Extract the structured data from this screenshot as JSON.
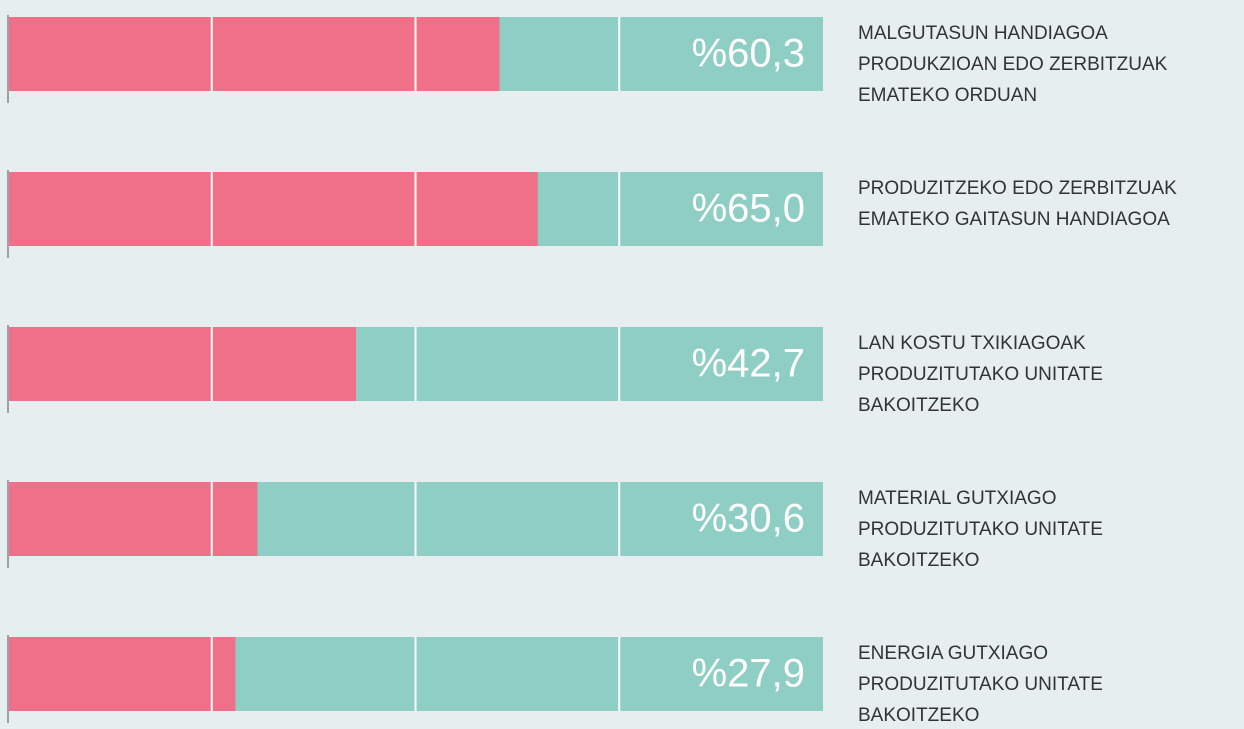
{
  "chart_data": {
    "type": "bar",
    "orientation": "horizontal",
    "categories": [
      [
        "MALGUTASUN HANDIAGOA",
        "PRODUKZIOAN EDO ZERBITZUAK",
        "EMATEKO ORDUAN"
      ],
      [
        "PRODUZITZEKO EDO ZERBITZUAK",
        "EMATEKO GAITASUN HANDIAGOA"
      ],
      [
        "LAN KOSTU TXIKIAGOAK",
        "PRODUZITUTAKO UNITATE",
        "BAKOITZEKO"
      ],
      [
        "MATERIAL GUTXIAGO",
        "PRODUZITUTAKO UNITATE",
        "BAKOITZEKO"
      ],
      [
        "ENERGIA GUTXIAGO",
        "PRODUZITUTAKO UNITATE",
        "BAKOITZEKO"
      ]
    ],
    "values": [
      60.3,
      65.0,
      42.7,
      30.6,
      27.9
    ],
    "value_labels": [
      "%60,3",
      "%65,0",
      "%42,7",
      "%30,6",
      "%27,9"
    ],
    "color": "#ef7088",
    "remainder_color": "#8fcec4",
    "xlim": [
      0,
      100
    ],
    "xticks": [
      25,
      50,
      75
    ],
    "grid": true
  }
}
